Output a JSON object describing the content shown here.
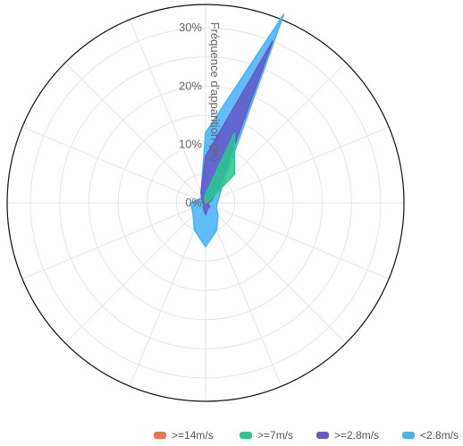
{
  "chart_data": {
    "type": "polar-area",
    "chart_kind": "wind rose (stacked radar)",
    "r_axis_label": "Fréquence d'apparition (%)",
    "r_max": 34,
    "r_ticks": [
      0,
      10,
      20,
      30
    ],
    "r_tick_labels": [
      "0%",
      "10%",
      "20%",
      "30%"
    ],
    "directions_count": 16,
    "grid": true,
    "legend_position": "bottom-right",
    "series": [
      {
        "name": ">=14m/s",
        "color": "#f27046",
        "values": [
          0.1,
          0.1,
          0.1,
          0,
          0,
          0,
          0,
          0,
          0,
          0,
          0,
          0,
          0,
          0,
          0,
          0
        ]
      },
      {
        "name": ">=7m/s",
        "color": "#28c98b",
        "values": [
          1.5,
          13,
          7,
          0.5,
          0,
          0,
          0,
          0,
          0,
          0,
          0,
          0,
          0,
          0,
          0,
          0.5
        ]
      },
      {
        "name": ">=2.8m/s",
        "color": "#6658c9",
        "values": [
          8,
          30,
          3,
          1,
          0.5,
          0.5,
          1,
          1,
          2,
          1,
          0.5,
          0.3,
          0.5,
          0.5,
          1,
          2
        ]
      },
      {
        "name": "<2.8m/s",
        "color": "#43b3f7",
        "values": [
          12,
          35,
          4,
          2.5,
          2,
          2,
          3,
          5,
          7.5,
          5,
          3,
          2.5,
          2.5,
          1.5,
          1,
          2
        ]
      }
    ]
  }
}
